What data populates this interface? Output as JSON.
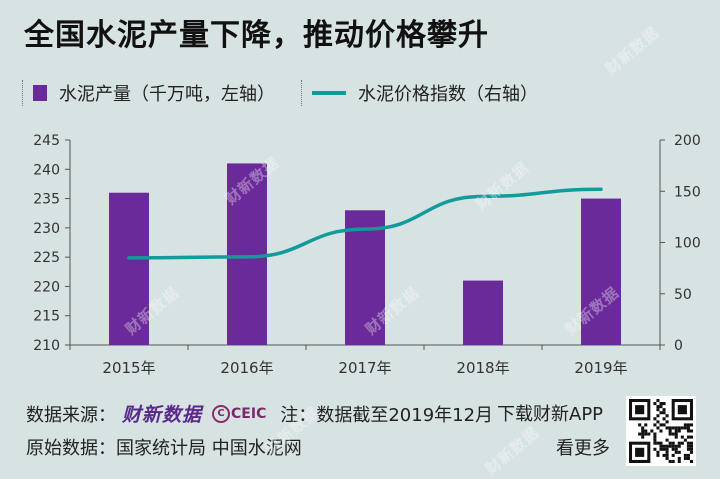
{
  "title": "全国水泥产量下降，推动价格攀升",
  "legend": {
    "bar_label": "水泥产量（千万吨，左轴）",
    "line_label": "水泥价格指数（右轴）"
  },
  "footer": {
    "source_label": "数据来源：",
    "caixin_logo": "财新数据",
    "ceic_logo": "CEIC",
    "note": "注：数据截至2019年12月",
    "app": "下载财新APP",
    "original_label": "原始数据：国家统计局 中国水泥网",
    "more": "看更多"
  },
  "watermark": "财新数据",
  "colors": {
    "bar": "#6b2a9a",
    "line": "#139a9b",
    "background": "#d7e2e3",
    "grid": "#b8c6c7"
  },
  "chart_data": {
    "type": "bar",
    "categories": [
      "2015年",
      "2016年",
      "2017年",
      "2018年",
      "2019年"
    ],
    "series": [
      {
        "name": "水泥产量（千万吨，左轴）",
        "type": "bar",
        "axis": "left",
        "values": [
          236,
          241,
          233,
          221,
          235
        ]
      },
      {
        "name": "水泥价格指数（右轴）",
        "type": "line",
        "axis": "right",
        "values": [
          85,
          86,
          113,
          145,
          152
        ]
      }
    ],
    "y_left": {
      "min": 210,
      "max": 245,
      "ticks": [
        210,
        215,
        220,
        225,
        230,
        235,
        240,
        245
      ]
    },
    "y_right": {
      "min": 0,
      "max": 200,
      "ticks": [
        0,
        50,
        100,
        150,
        200
      ]
    },
    "grid": false,
    "legend_position": "top-left"
  }
}
